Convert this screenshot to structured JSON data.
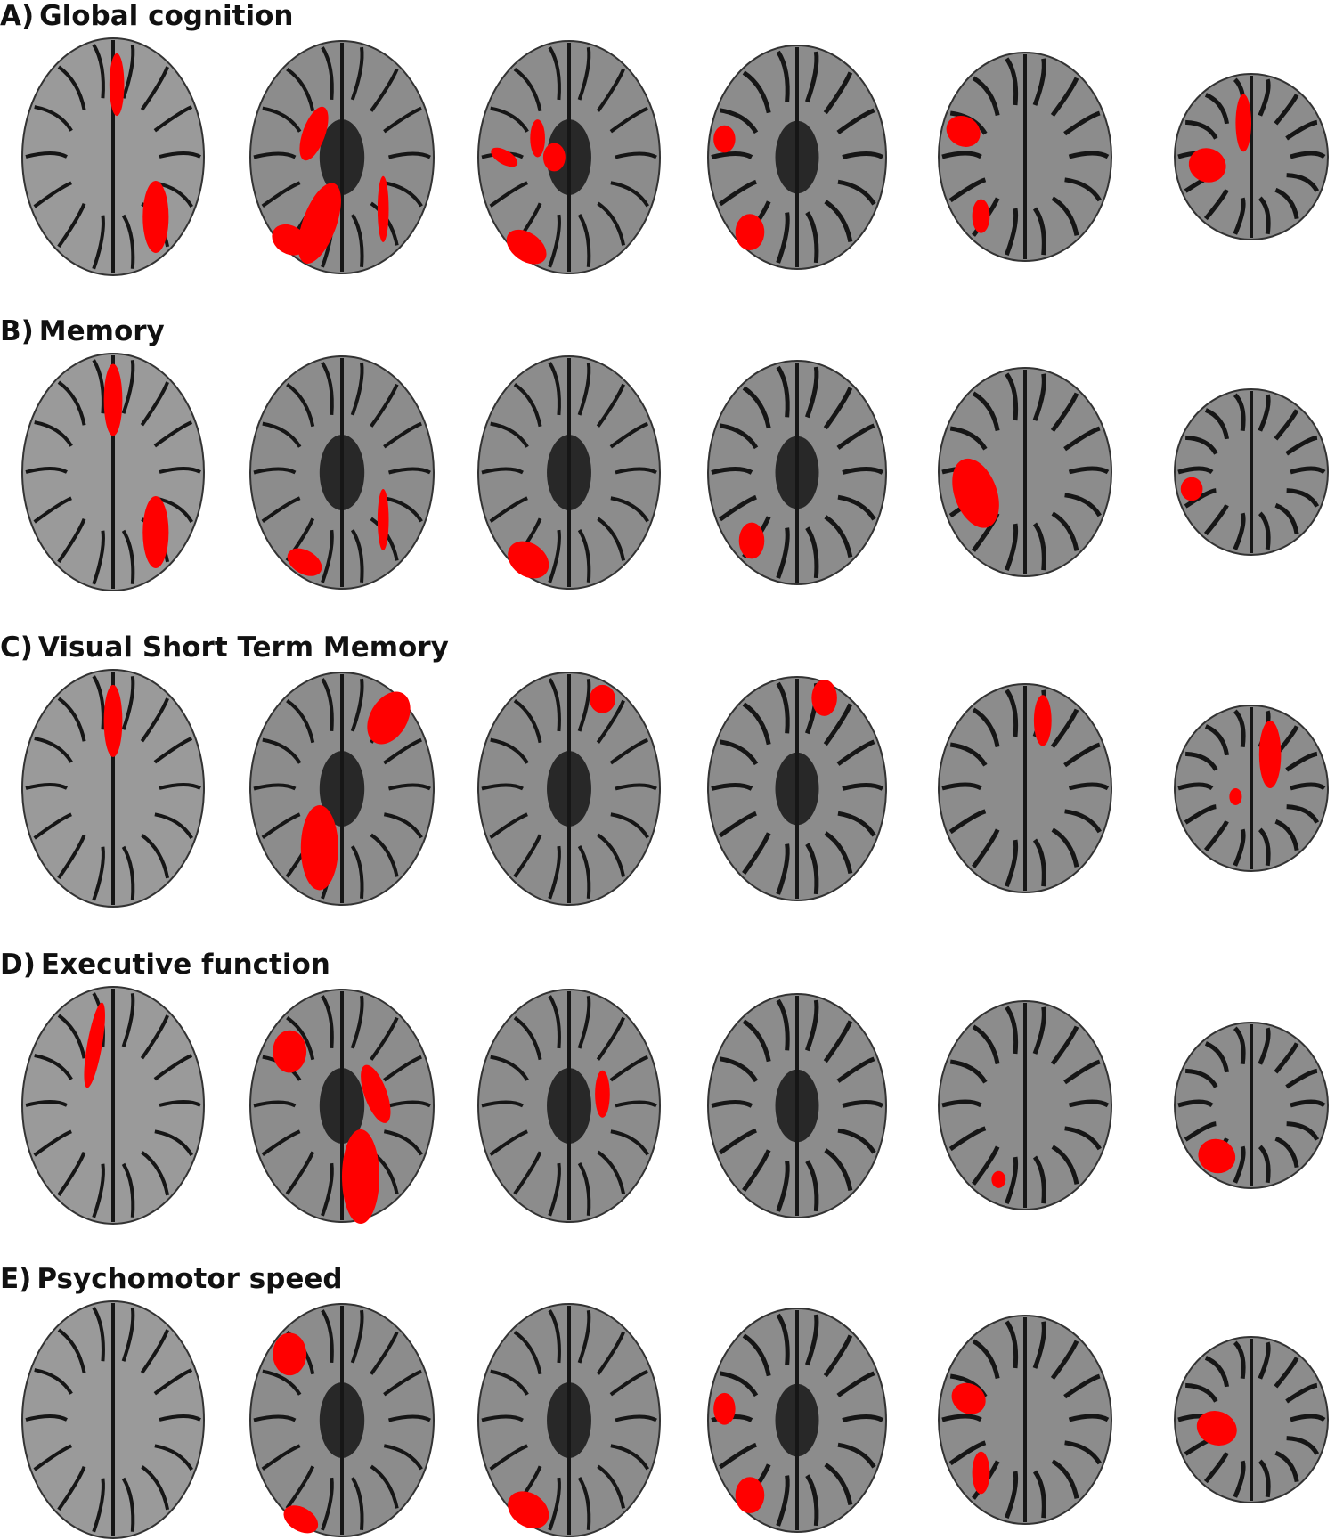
{
  "figure": {
    "panels": [
      {
        "letter": "A)",
        "title": "Global cognition"
      },
      {
        "letter": "B)",
        "title": "Memory"
      },
      {
        "letter": "C)",
        "title": "Visual Short Term Memory"
      },
      {
        "letter": "D)",
        "title": "Executive function"
      },
      {
        "letter": "E)",
        "title": "Psychomotor speed"
      }
    ],
    "slices_per_panel": 6,
    "colors": {
      "cluster": "#ff0000",
      "brain": "#8c8c8c",
      "sulci": "#161616"
    }
  }
}
